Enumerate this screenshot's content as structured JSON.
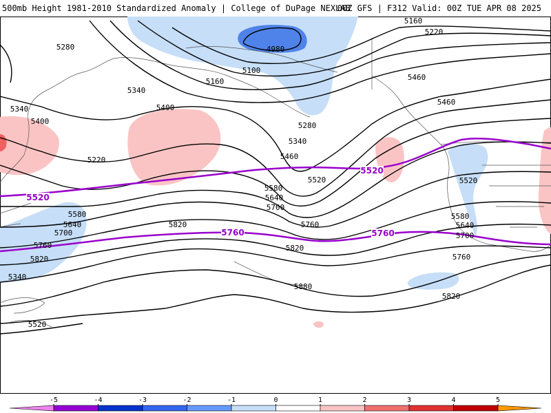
{
  "header": {
    "title_left": "500mb Height 1981-2010 Standardized Anomaly | College of DuPage NEXLAB",
    "title_right": "00Z GFS | F312 Valid: 00Z TUE APR 08 2025"
  },
  "colors": {
    "contour": "#000000",
    "highlight_contour": "#9900cc",
    "coastline": "#555555",
    "anom_neg_1": "#c6def7",
    "anom_neg_2": "#4f83ea",
    "anom_pos_1": "#fbc4c4",
    "anom_pos_2": "#f06060"
  },
  "map": {
    "contour_labels": [
      "5160",
      "5220",
      "5280",
      "5100",
      "4980",
      "5340",
      "5160",
      "5400",
      "5340",
      "5460",
      "5400",
      "5220",
      "5280",
      "5340",
      "5460",
      "5520",
      "5580",
      "5640",
      "5700",
      "5760",
      "5820",
      "5820",
      "5880",
      "5520",
      "5580",
      "5640",
      "5700",
      "5760",
      "5820",
      "5340",
      "5460",
      "5520",
      "5580",
      "5640",
      "5700",
      "5760",
      "5820"
    ],
    "highlight_labels": [
      "5520",
      "5520",
      "5760",
      "5760"
    ]
  },
  "legend": {
    "tick_labels": [
      "-5",
      "-4",
      "-3",
      "-2",
      "-1",
      "0",
      "1",
      "2",
      "3",
      "4",
      "5"
    ],
    "colors": [
      "#ee82ee",
      "#9400d3",
      "#0033cc",
      "#3366ee",
      "#6699ff",
      "#c6def7",
      "#ffffff",
      "#fbc4c4",
      "#f07070",
      "#e03030",
      "#c00000",
      "#ff9900",
      "#ffcc00"
    ]
  }
}
